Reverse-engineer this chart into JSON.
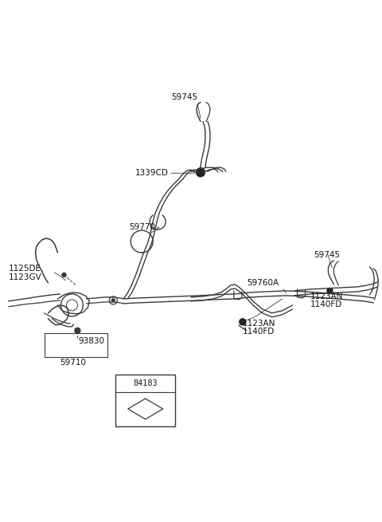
{
  "bg_color": "#ffffff",
  "line_color": "#3a3a3a",
  "text_color": "#111111",
  "fig_width": 4.8,
  "fig_height": 6.55,
  "dpi": 100,
  "xlim": [
    0,
    480
  ],
  "ylim": [
    0,
    655
  ]
}
